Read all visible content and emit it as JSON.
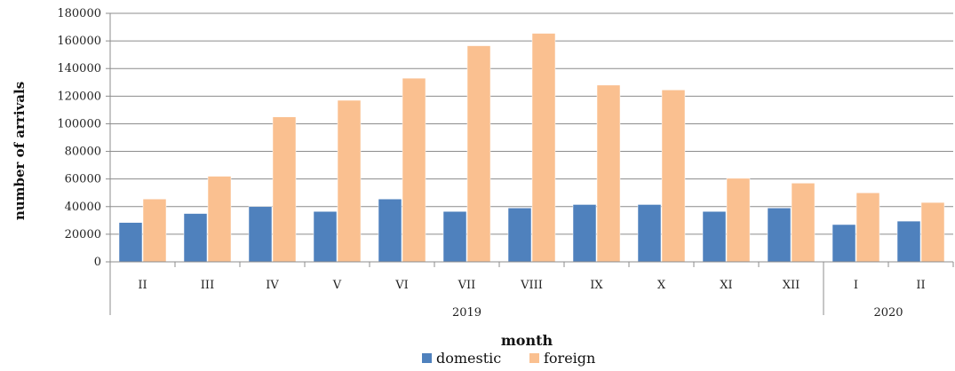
{
  "chart_data": {
    "type": "bar",
    "xlabel": "month",
    "ylabel": "number of arrivals",
    "ylim": [
      0,
      180000
    ],
    "yticks": [
      "0",
      "20000",
      "40000",
      "60000",
      "80000",
      "100000",
      "120000",
      "140000",
      "160000",
      "180000"
    ],
    "categories": [
      "II",
      "III",
      "IV",
      "V",
      "VI",
      "VII",
      "VIII",
      "IX",
      "X",
      "XI",
      "XII",
      "I",
      "II"
    ],
    "groups": [
      {
        "label": "2019",
        "start": 0,
        "end": 10
      },
      {
        "label": "2020",
        "start": 11,
        "end": 12
      }
    ],
    "series": [
      {
        "name": "domestic",
        "color": "#4f81bd",
        "values": [
          28500,
          35000,
          40000,
          36500,
          45500,
          36500,
          39000,
          41500,
          41500,
          36500,
          39000,
          27000,
          29500
        ]
      },
      {
        "name": "foreign",
        "color": "#fac090",
        "values": [
          45500,
          62000,
          105000,
          117000,
          133000,
          156500,
          165500,
          128000,
          124500,
          60500,
          57000,
          50000,
          43000
        ]
      }
    ],
    "grid": true,
    "legend_position": "bottom"
  }
}
